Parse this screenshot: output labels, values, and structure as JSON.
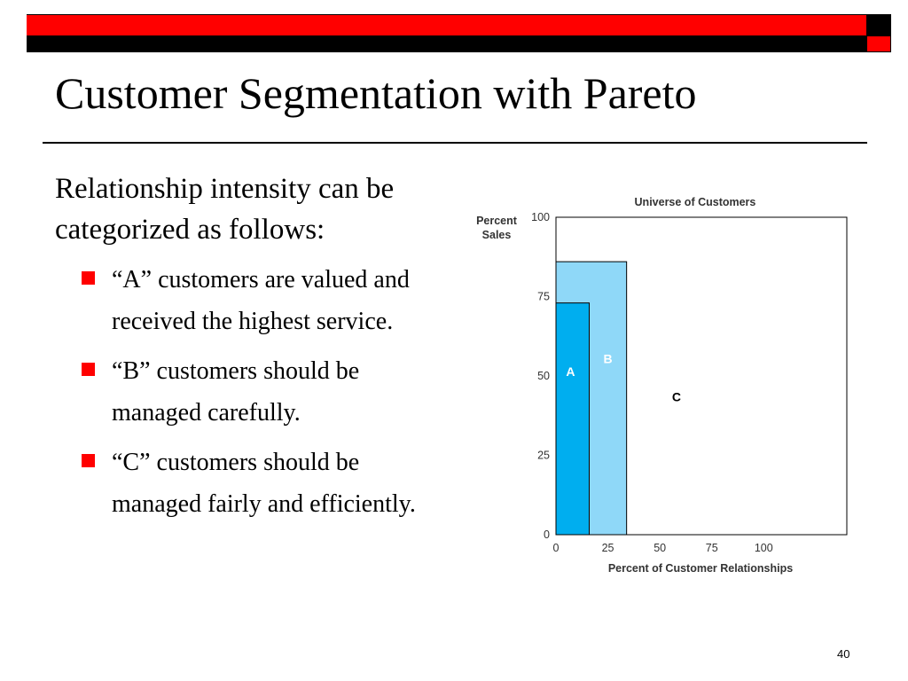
{
  "slide": {
    "title": "Customer Segmentation with Pareto",
    "intro": "Relationship intensity can be categorized as follows:",
    "bullets": [
      "“A” customers are valued and received the highest service.",
      "“B” customers should be managed carefully.",
      "“C” customers should be managed fairly and efficiently."
    ],
    "page_number": "40"
  },
  "colors": {
    "banner_red": "#ff0000",
    "banner_black": "#000000",
    "segment_a": "#00aeef",
    "segment_b": "#8fd8f8",
    "segment_c": "#ffffff"
  },
  "chart_data": {
    "type": "area",
    "title": "Universe of Customers",
    "xlabel": "Percent of Customer Relationships",
    "ylabel": "Percent Sales",
    "xlim": [
      0,
      140
    ],
    "ylim": [
      0,
      100
    ],
    "x_ticks": [
      0,
      25,
      50,
      75,
      100
    ],
    "y_ticks": [
      0,
      25,
      50,
      75,
      100
    ],
    "grid": false,
    "legend": "none",
    "segments": [
      {
        "label": "C",
        "x": [
          0,
          140
        ],
        "y": [
          0,
          100
        ]
      },
      {
        "label": "B",
        "x": [
          0,
          34
        ],
        "y": [
          0,
          86
        ]
      },
      {
        "label": "A",
        "x": [
          0,
          16
        ],
        "y": [
          0,
          73
        ]
      }
    ]
  }
}
